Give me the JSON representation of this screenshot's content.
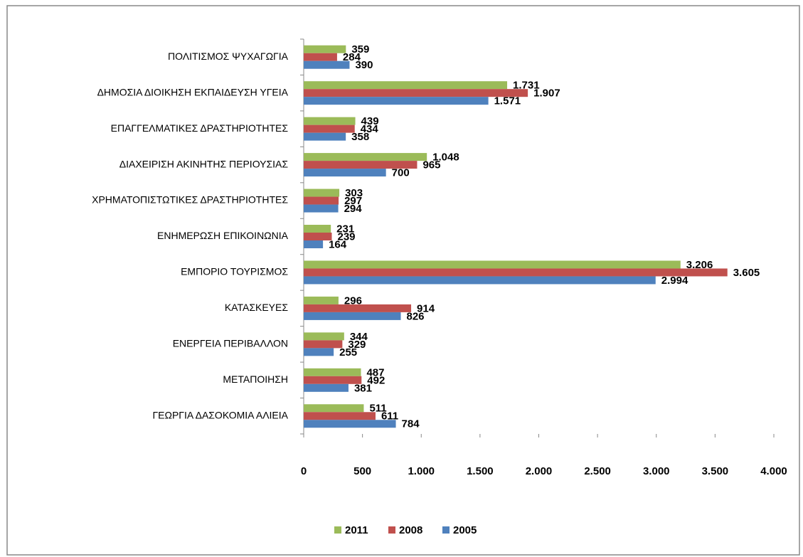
{
  "chart_data": {
    "type": "hbar",
    "categories": [
      "ΠΟΛΙΤΙΣΜΟΣ ΨΥΧΑΓΩΓΙΑ",
      "ΔΗΜΟΣΙΑ ΔΙΟΙΚΗΣΗ ΕΚΠΑΙΔΕΥΣΗ ΥΓΕΙΑ",
      "ΕΠΑΓΓΕΛΜΑΤΙΚΕΣ ΔΡΑΣΤΗΡΙΟΤΗΤΕΣ",
      "ΔΙΑΧΕΙΡΙΣΗ ΑΚΙΝΗΤΗΣ ΠΕΡΙΟΥΣΙΑΣ",
      "ΧΡΗΜΑΤΟΠΙΣΤΩΤΙΚΕΣ ΔΡΑΣΤΗΡΙΟΤΗΤΕΣ",
      "ΕΝΗΜΕΡΩΣΗ ΕΠΙΚΟΙΝΩΝΙΑ",
      "ΕΜΠΟΡΙΟ ΤΟΥΡΙΣΜΟΣ",
      "ΚΑΤΑΣΚΕΥΕΣ",
      "ΕΝΕΡΓΕΙΑ ΠΕΡΙΒΑΛΛΟΝ",
      "ΜΕΤΑΠΟΙΗΣΗ",
      "ΓΕΩΡΓΙΑ ΔΑΣΟΚΟΜΙΑ ΑΛΙΕΙΑ"
    ],
    "series": [
      {
        "name": "2011",
        "color": "#9bbb59",
        "values": [
          359,
          1731,
          439,
          1048,
          303,
          231,
          3206,
          296,
          344,
          487,
          511
        ],
        "value_labels": [
          "359",
          "1.731",
          "439",
          "1.048",
          "303",
          "231",
          "3.206",
          "296",
          "344",
          "487",
          "511"
        ]
      },
      {
        "name": "2008",
        "color": "#c0504d",
        "values": [
          284,
          1907,
          434,
          965,
          297,
          239,
          3605,
          914,
          329,
          492,
          611
        ],
        "value_labels": [
          "284",
          "1.907",
          "434",
          "965",
          "297",
          "239",
          "3.605",
          "914",
          "329",
          "492",
          "611"
        ]
      },
      {
        "name": "2005",
        "color": "#4f81bd",
        "values": [
          390,
          1571,
          358,
          700,
          294,
          164,
          2994,
          826,
          255,
          381,
          784
        ],
        "value_labels": [
          "390",
          "1.571",
          "358",
          "700",
          "294",
          "164",
          "2.994",
          "826",
          "255",
          "381",
          "784"
        ]
      }
    ],
    "xlim": [
      0,
      4000
    ],
    "xticks": [
      0,
      500,
      {
        "value": 1000,
        "label": "1.000"
      },
      {
        "value": 1500,
        "label": "1.500"
      },
      {
        "value": 2000,
        "label": "2.000"
      },
      {
        "value": 2500,
        "label": "2.500"
      },
      {
        "value": 3000,
        "label": "3.000"
      },
      {
        "value": 3500,
        "label": "3.500"
      },
      {
        "value": 4000,
        "label": "4.000"
      }
    ],
    "grid": false,
    "legend": "bottom"
  }
}
